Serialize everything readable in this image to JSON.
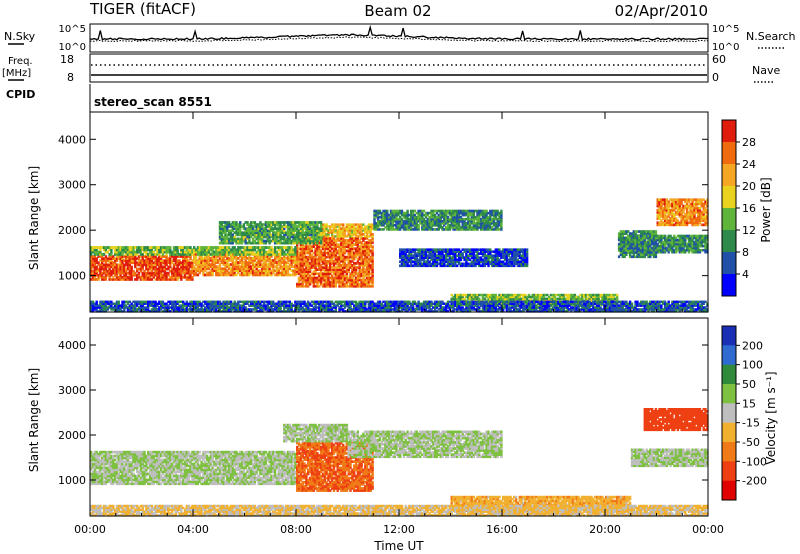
{
  "header": {
    "station": "TIGER (fitACF)",
    "beam": "Beam 02",
    "date": "02/Apr/2010"
  },
  "top_panels": {
    "nsky": {
      "label": "N.Sky",
      "left_ticks": [
        "10^5",
        "10^0"
      ],
      "right_ticks": [
        "10^5",
        "10^0"
      ],
      "right_label": "N.Search"
    },
    "freq": {
      "label_line1": "Freq.",
      "label_line2": "[MHz]",
      "left_ticks": [
        "18",
        "8"
      ],
      "right_ticks": [
        "60",
        "0"
      ],
      "right_label": "Nave"
    },
    "cpid": {
      "label": "CPID",
      "value": "stereo_scan 8551"
    }
  },
  "chart_data": [
    {
      "type": "heatmap",
      "name": "power",
      "ylabel": "Slant Range [km]",
      "ylim": [
        200,
        4600
      ],
      "yticks": [
        "1000",
        "2000",
        "3000",
        "4000"
      ],
      "xlim": [
        "00:00",
        "24:00"
      ],
      "colorbar": {
        "label": "Power [dB]",
        "ticks": [
          "4",
          "8",
          "12",
          "16",
          "20",
          "24",
          "28"
        ],
        "colors": [
          "#0000ff",
          "#2050a8",
          "#2d8a4a",
          "#5fb53c",
          "#e8d21e",
          "#f5a623",
          "#f06a10",
          "#e01c0c"
        ]
      },
      "regions": [
        {
          "t0": 0.0,
          "t1": 4.0,
          "r0": 900,
          "r1": 1450,
          "value": 28
        },
        {
          "t0": 4.0,
          "t1": 8.0,
          "r0": 1000,
          "r1": 1500,
          "value": 24
        },
        {
          "t0": 8.0,
          "t1": 11.0,
          "r0": 750,
          "r1": 1850,
          "value": 26
        },
        {
          "t0": 9.0,
          "t1": 11.0,
          "r0": 1850,
          "r1": 2150,
          "value": 20
        },
        {
          "t0": 0.0,
          "t1": 8.0,
          "r0": 1450,
          "r1": 1650,
          "value": 14
        },
        {
          "t0": 5.0,
          "t1": 9.0,
          "r0": 1700,
          "r1": 2200,
          "value": 12
        },
        {
          "t0": 11.0,
          "t1": 16.0,
          "r0": 2000,
          "r1": 2450,
          "value": 10
        },
        {
          "t0": 12.0,
          "t1": 17.0,
          "r0": 1200,
          "r1": 1600,
          "value": 5
        },
        {
          "t0": 14.0,
          "t1": 20.5,
          "r0": 350,
          "r1": 600,
          "value": 14
        },
        {
          "t0": 20.5,
          "t1": 22.0,
          "r0": 1400,
          "r1": 2000,
          "value": 10
        },
        {
          "t0": 22.0,
          "t1": 24.0,
          "r0": 2100,
          "r1": 2700,
          "value": 24
        },
        {
          "t0": 21.0,
          "t1": 24.0,
          "r0": 1500,
          "r1": 1900,
          "value": 10
        },
        {
          "t0": 0.0,
          "t1": 24.0,
          "r0": 200,
          "r1": 450,
          "value": 6
        }
      ]
    },
    {
      "type": "heatmap",
      "name": "velocity",
      "ylabel": "Slant Range [km]",
      "ylim": [
        200,
        4600
      ],
      "yticks": [
        "1000",
        "2000",
        "3000",
        "4000"
      ],
      "xlim": [
        "00:00",
        "24:00"
      ],
      "xticks": [
        "00:00",
        "04:00",
        "08:00",
        "12:00",
        "16:00",
        "20:00",
        "00:00"
      ],
      "xlabel": "Time UT",
      "colorbar": {
        "label": "Velocity [m s⁻¹]",
        "ticks": [
          "200",
          "100",
          "50",
          "15",
          "-15",
          "-50",
          "-100",
          "-200"
        ],
        "colors": [
          "#1a2fb5",
          "#2f6ad0",
          "#2f8a3c",
          "#7ec040",
          "#bebebe",
          "#f2b030",
          "#f07a18",
          "#ee4012",
          "#e00000"
        ]
      },
      "regions": [
        {
          "t0": 0.0,
          "t1": 8.0,
          "r0": 900,
          "r1": 1650,
          "value": 0
        },
        {
          "t0": 8.0,
          "t1": 11.0,
          "r0": 750,
          "r1": 1850,
          "value": -150
        },
        {
          "t0": 7.5,
          "t1": 10.0,
          "r0": 1850,
          "r1": 2250,
          "value": 0
        },
        {
          "t0": 10.0,
          "t1": 16.0,
          "r0": 1500,
          "r1": 2100,
          "value": 0
        },
        {
          "t0": 14.0,
          "t1": 21.0,
          "r0": 300,
          "r1": 650,
          "value": -60
        },
        {
          "t0": 21.5,
          "t1": 24.0,
          "r0": 2100,
          "r1": 2600,
          "value": -200
        },
        {
          "t0": 21.0,
          "t1": 24.0,
          "r0": 1300,
          "r1": 1700,
          "value": 0
        },
        {
          "t0": 0.0,
          "t1": 24.0,
          "r0": 200,
          "r1": 450,
          "value": -40
        }
      ]
    }
  ]
}
